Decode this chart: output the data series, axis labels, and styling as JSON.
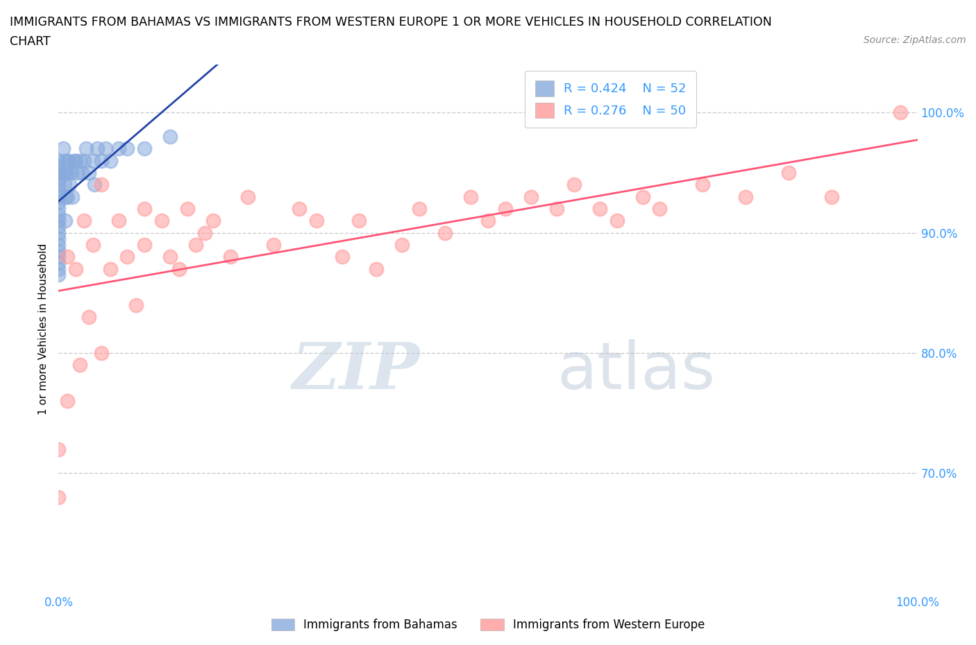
{
  "title_line1": "IMMIGRANTS FROM BAHAMAS VS IMMIGRANTS FROM WESTERN EUROPE 1 OR MORE VEHICLES IN HOUSEHOLD CORRELATION",
  "title_line2": "CHART",
  "source": "Source: ZipAtlas.com",
  "ylabel": "1 or more Vehicles in Household",
  "legend_label1": "Immigrants from Bahamas",
  "legend_label2": "Immigrants from Western Europe",
  "R1": 0.424,
  "N1": 52,
  "R2": 0.276,
  "N2": 50,
  "color1": "#88AADD",
  "color2": "#FF9999",
  "trendline1_color": "#2244AA",
  "trendline2_color": "#FF5577",
  "xlim": [
    0.0,
    1.0
  ],
  "ylim": [
    0.6,
    1.04
  ],
  "bahamas_x": [
    0.0,
    0.0,
    0.0,
    0.0,
    0.0,
    0.0,
    0.0,
    0.0,
    0.0,
    0.0,
    0.0,
    0.0,
    0.0,
    0.0,
    0.0,
    0.0,
    0.0,
    0.0,
    0.0,
    0.0,
    0.005,
    0.005,
    0.007,
    0.007,
    0.008,
    0.008,
    0.008,
    0.01,
    0.01,
    0.01,
    0.012,
    0.013,
    0.015,
    0.016,
    0.018,
    0.02,
    0.022,
    0.025,
    0.027,
    0.03,
    0.032,
    0.035,
    0.04,
    0.042,
    0.045,
    0.05,
    0.055,
    0.06,
    0.07,
    0.08,
    0.1,
    0.13
  ],
  "bahamas_y": [
    0.96,
    0.955,
    0.95,
    0.945,
    0.94,
    0.935,
    0.93,
    0.925,
    0.92,
    0.915,
    0.91,
    0.905,
    0.9,
    0.895,
    0.89,
    0.885,
    0.88,
    0.875,
    0.87,
    0.865,
    0.97,
    0.95,
    0.96,
    0.94,
    0.95,
    0.93,
    0.91,
    0.96,
    0.95,
    0.93,
    0.96,
    0.94,
    0.95,
    0.93,
    0.96,
    0.96,
    0.95,
    0.96,
    0.95,
    0.96,
    0.97,
    0.95,
    0.96,
    0.94,
    0.97,
    0.96,
    0.97,
    0.96,
    0.97,
    0.97,
    0.97,
    0.98
  ],
  "western_x": [
    0.0,
    0.0,
    0.01,
    0.01,
    0.02,
    0.025,
    0.03,
    0.035,
    0.04,
    0.05,
    0.05,
    0.06,
    0.07,
    0.08,
    0.09,
    0.1,
    0.1,
    0.12,
    0.13,
    0.14,
    0.15,
    0.16,
    0.17,
    0.18,
    0.2,
    0.22,
    0.25,
    0.28,
    0.3,
    0.33,
    0.35,
    0.37,
    0.4,
    0.42,
    0.45,
    0.48,
    0.5,
    0.52,
    0.55,
    0.58,
    0.6,
    0.63,
    0.65,
    0.68,
    0.7,
    0.75,
    0.8,
    0.85,
    0.9,
    0.98
  ],
  "western_y": [
    0.68,
    0.72,
    0.88,
    0.76,
    0.87,
    0.79,
    0.91,
    0.83,
    0.89,
    0.94,
    0.8,
    0.87,
    0.91,
    0.88,
    0.84,
    0.92,
    0.89,
    0.91,
    0.88,
    0.87,
    0.92,
    0.89,
    0.9,
    0.91,
    0.88,
    0.93,
    0.89,
    0.92,
    0.91,
    0.88,
    0.91,
    0.87,
    0.89,
    0.92,
    0.9,
    0.93,
    0.91,
    0.92,
    0.93,
    0.92,
    0.94,
    0.92,
    0.91,
    0.93,
    0.92,
    0.94,
    0.93,
    0.95,
    0.93,
    1.0
  ],
  "watermark_part1": "ZIP",
  "watermark_part2": "atlas",
  "watermark_color1": "#BBCCDD",
  "watermark_color2": "#AABBCC",
  "background_color": "#FFFFFF",
  "grid_color": "#CCCCCC",
  "grid_style": "--",
  "tick_color": "#3399FF",
  "title_color": "#000000",
  "source_color": "#888888"
}
